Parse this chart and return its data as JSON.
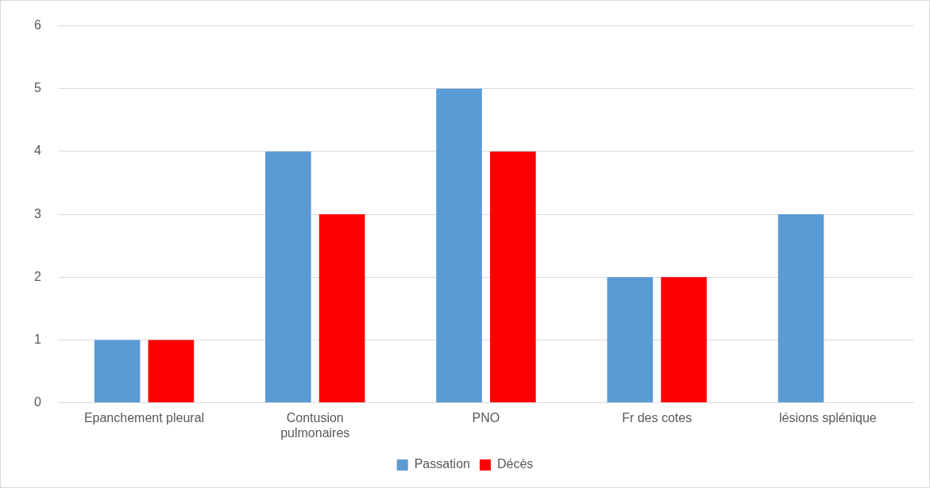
{
  "chart_data": {
    "type": "bar",
    "categories": [
      "Epanchement pleural",
      "Contusion pulmonaires",
      "PNO",
      "Fr des cotes",
      "lésions splénique"
    ],
    "series": [
      {
        "name": "Passation",
        "color": "#5b9bd5",
        "values": [
          1,
          4,
          5,
          2,
          3
        ]
      },
      {
        "name": "Décès",
        "color": "#ff0000",
        "values": [
          1,
          3,
          4,
          2,
          0
        ]
      }
    ],
    "ylim": [
      0,
      6
    ],
    "yticks": [
      0,
      1,
      2,
      3,
      4,
      5,
      6
    ],
    "grid": "y",
    "legend": "bottom"
  }
}
